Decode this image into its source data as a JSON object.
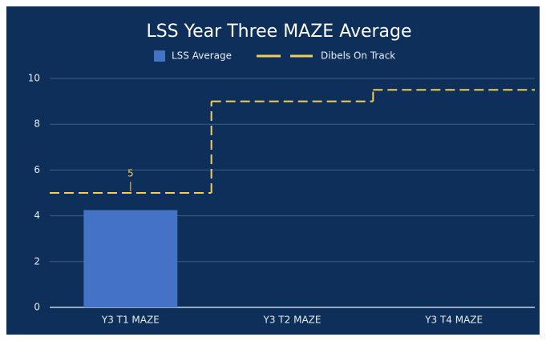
{
  "chart_data": {
    "type": "bar-step",
    "title": "LSS Year Three MAZE Average",
    "categories": [
      "Y3 T1 MAZE",
      "Y3 T2 MAZE",
      "Y3 T4 MAZE"
    ],
    "series": [
      {
        "name": "LSS Average",
        "color": "#4472c4",
        "type": "bar",
        "values": [
          4.25,
          null,
          null
        ]
      },
      {
        "name": "Dibels On Track",
        "color": "#f3cd5a",
        "type": "step",
        "values": [
          5,
          9,
          9.5
        ],
        "value_labels": [
          "5",
          null,
          null
        ]
      }
    ],
    "ylim": [
      0,
      10
    ],
    "yticks": [
      0,
      2,
      4,
      6,
      8,
      10
    ],
    "grid": true,
    "legend": "top"
  }
}
